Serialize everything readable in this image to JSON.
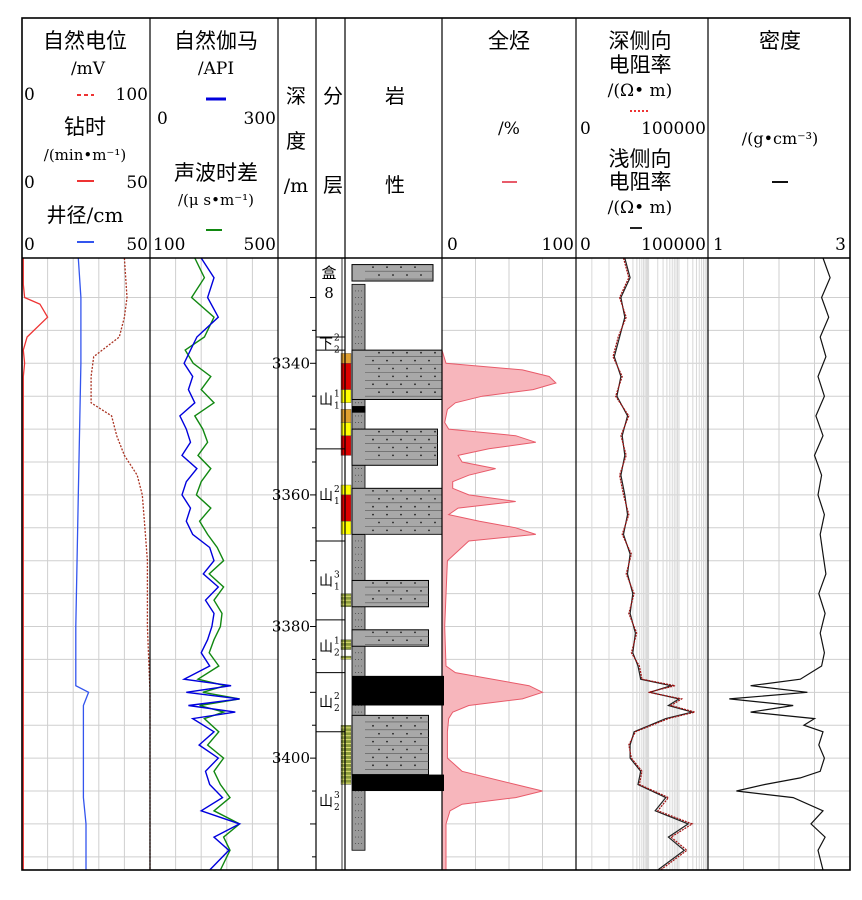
{
  "chart_data": {
    "type": "well_log",
    "depth_range": [
      3324,
      3417
    ],
    "depth_ticks": [
      3340,
      3360,
      3380,
      3400
    ],
    "colors": {
      "sp": "#ee3333",
      "cal": "#3355ee",
      "rop": "#aa3322",
      "gr": "#0000dd",
      "ac": "#118811",
      "tg_fill": "#f7b6bc",
      "tg_line": "#e85b6a",
      "rd": "#a11010",
      "rs": "#222222",
      "den": "#111111",
      "sand_fill": "#a8a8a8",
      "coal": "#000000",
      "oil_red": "#dd0000",
      "oil_orange": "#e0a030",
      "yellow": "#ffff00",
      "green_band": "#8a9a3a"
    },
    "headers": {
      "sp": {
        "name": "自然电位",
        "unit": "/mV",
        "min": "0",
        "max": "100"
      },
      "rop": {
        "name": "钻时",
        "unit": "/(min•m⁻¹)",
        "min": "0",
        "max": "50"
      },
      "cal": {
        "name": "井径/cm",
        "min": "0",
        "max": "50"
      },
      "gr": {
        "name": "自然伽马",
        "unit": "/API",
        "min": "0",
        "max": "300"
      },
      "ac": {
        "name": "声波时差",
        "unit": "/(μ s•m⁻¹)",
        "min": "100",
        "max": "500"
      },
      "depth": {
        "c1": "深",
        "c2": "度",
        "c3": "/m"
      },
      "strata": {
        "c1": "分",
        "c2": "层"
      },
      "lith": {
        "c1": "岩",
        "c2": "性"
      },
      "tg": {
        "name": "全烃",
        "unit": "/%",
        "min": "0",
        "max": "100"
      },
      "rd": {
        "name1": "深侧向",
        "name2": "电阻率",
        "unit": "/(Ω• m)",
        "min": "0",
        "max": "100000"
      },
      "rs": {
        "name1": "浅侧向",
        "name2": "电阻率",
        "unit": "/(Ω• m)"
      },
      "den": {
        "name": "密度",
        "unit": "/(g•cm⁻³)",
        "min": "1",
        "max": "3"
      }
    },
    "strata": [
      {
        "name": "盒",
        "sub": "8",
        "top": 3324,
        "bottom": 3336
      },
      {
        "name": "下",
        "sup": "2",
        "sub": "2",
        "top": 3336,
        "bottom": 3338
      },
      {
        "name": "山",
        "sup": "1",
        "sub": "1",
        "top": 3338,
        "bottom": 3353
      },
      {
        "name": "山",
        "sup": "2",
        "sub": "1",
        "top": 3353,
        "bottom": 3367
      },
      {
        "name": "山",
        "sup": "3",
        "sub": "1",
        "top": 3367,
        "bottom": 3379
      },
      {
        "name": "山",
        "sup": "1",
        "sub": "2",
        "top": 3379,
        "bottom": 3387
      },
      {
        "name": "山",
        "sup": "2",
        "sub": "2",
        "top": 3387,
        "bottom": 3396
      },
      {
        "name": "山",
        "sup": "3",
        "sub": "2",
        "top": 3396,
        "bottom": 3417
      }
    ],
    "lithology": [
      {
        "top": 3325,
        "bottom": 3327.5,
        "type": "sandstone",
        "width": 0.9
      },
      {
        "top": 3338,
        "bottom": 3345.5,
        "type": "sandstone",
        "width": 1.0
      },
      {
        "top": 3346.5,
        "bottom": 3347.5,
        "type": "coal",
        "width": 0.15
      },
      {
        "top": 3350,
        "bottom": 3355.5,
        "type": "sandstone",
        "width": 0.95
      },
      {
        "top": 3359,
        "bottom": 3366,
        "type": "sandstone",
        "width": 1.0
      },
      {
        "top": 3373,
        "bottom": 3377,
        "type": "sandstone",
        "width": 0.85
      },
      {
        "top": 3380.5,
        "bottom": 3383,
        "type": "sandstone",
        "width": 0.85
      },
      {
        "top": 3387.5,
        "bottom": 3392,
        "type": "coal",
        "width": 1.1
      },
      {
        "top": 3393.5,
        "bottom": 3402.5,
        "type": "sandstone",
        "width": 0.85
      },
      {
        "top": 3402.5,
        "bottom": 3405,
        "type": "coal",
        "width": 1.1
      }
    ],
    "oil_shows": [
      {
        "top": 3338.5,
        "bottom": 3340,
        "color": "orange"
      },
      {
        "top": 3340,
        "bottom": 3344,
        "color": "red"
      },
      {
        "top": 3344,
        "bottom": 3346,
        "color": "yellow"
      },
      {
        "top": 3347,
        "bottom": 3349,
        "color": "orange"
      },
      {
        "top": 3349,
        "bottom": 3351,
        "color": "yellow"
      },
      {
        "top": 3351,
        "bottom": 3354,
        "color": "red"
      },
      {
        "top": 3358.5,
        "bottom": 3360,
        "color": "yellow"
      },
      {
        "top": 3360,
        "bottom": 3364,
        "color": "red"
      },
      {
        "top": 3364,
        "bottom": 3366,
        "color": "yellow"
      },
      {
        "top": 3375,
        "bottom": 3377,
        "color": "green"
      },
      {
        "top": 3382,
        "bottom": 3383.5,
        "color": "green"
      },
      {
        "top": 3384.5,
        "bottom": 3385,
        "color": "green"
      },
      {
        "top": 3395,
        "bottom": 3404,
        "color": "green"
      }
    ],
    "series": {
      "sp": {
        "depth": [
          3324,
          3328,
          3330,
          3331,
          3333,
          3336,
          3338,
          3340,
          3342,
          3346,
          3350,
          3360,
          3380,
          3400,
          3417
        ],
        "values": [
          1,
          1,
          2,
          14,
          20,
          4,
          1,
          2,
          1,
          1,
          1,
          1,
          1,
          1,
          1
        ]
      },
      "cal": {
        "depth": [
          3324,
          3330,
          3340,
          3360,
          3380,
          3389,
          3390,
          3392,
          3395,
          3400,
          3406,
          3410,
          3417
        ],
        "values": [
          22,
          23,
          23,
          22,
          21,
          21,
          26,
          24,
          24,
          24,
          24,
          25,
          25
        ]
      },
      "rop": {
        "depth": [
          3324,
          3330,
          3333,
          3336,
          3339,
          3342,
          3346,
          3348,
          3351,
          3354,
          3357,
          3360,
          3365,
          3370,
          3380,
          3390,
          3400,
          3417
        ],
        "values": [
          40,
          41,
          40,
          38,
          28,
          27,
          27,
          35,
          37,
          40,
          45,
          47,
          48,
          49,
          49,
          50,
          50,
          50
        ]
      },
      "gr": {
        "depth": [
          3324,
          3327,
          3330,
          3333,
          3336,
          3338,
          3340,
          3342,
          3344,
          3346,
          3348,
          3350,
          3352,
          3354,
          3356,
          3358,
          3360,
          3362,
          3364,
          3366,
          3368,
          3370,
          3372,
          3374,
          3376,
          3378,
          3380,
          3382,
          3384,
          3386,
          3388,
          3389,
          3390,
          3391,
          3392,
          3393,
          3394,
          3396,
          3398,
          3400,
          3402,
          3404,
          3406,
          3408,
          3410,
          3412,
          3414,
          3417
        ],
        "values": [
          120,
          150,
          135,
          160,
          110,
          95,
          80,
          100,
          90,
          105,
          70,
          85,
          95,
          75,
          110,
          85,
          75,
          95,
          85,
          100,
          140,
          150,
          125,
          160,
          130,
          150,
          145,
          135,
          120,
          140,
          80,
          190,
          85,
          210,
          90,
          200,
          100,
          150,
          115,
          160,
          130,
          140,
          170,
          120,
          210,
          150,
          185,
          140
        ]
      },
      "ac": {
        "depth": [
          3324,
          3327,
          3330,
          3333,
          3336,
          3338,
          3340,
          3342,
          3344,
          3346,
          3348,
          3350,
          3352,
          3354,
          3356,
          3358,
          3360,
          3362,
          3364,
          3366,
          3368,
          3370,
          3372,
          3374,
          3376,
          3378,
          3380,
          3382,
          3384,
          3386,
          3388,
          3389,
          3390,
          3391,
          3392,
          3393,
          3394,
          3396,
          3398,
          3400,
          3402,
          3404,
          3406,
          3408,
          3410,
          3412,
          3414,
          3417
        ],
        "values": [
          240,
          270,
          230,
          300,
          270,
          210,
          235,
          290,
          260,
          300,
          240,
          265,
          280,
          250,
          290,
          260,
          245,
          290,
          255,
          280,
          310,
          330,
          285,
          330,
          300,
          325,
          320,
          300,
          285,
          315,
          250,
          335,
          265,
          380,
          255,
          330,
          270,
          315,
          280,
          330,
          300,
          320,
          350,
          300,
          380,
          330,
          350,
          320
        ]
      },
      "tg": {
        "depth": [
          3324,
          3336,
          3338,
          3340,
          3341,
          3342,
          3343,
          3344,
          3345,
          3346,
          3347,
          3349,
          3350,
          3351,
          3352,
          3353,
          3354,
          3355,
          3356,
          3357,
          3358,
          3359,
          3360,
          3361,
          3362,
          3363,
          3364,
          3365,
          3366,
          3367,
          3370,
          3380,
          3386,
          3387,
          3389,
          3390,
          3391,
          3392,
          3393,
          3394,
          3396,
          3400,
          3402,
          3404,
          3405,
          3406,
          3407,
          3408,
          3410,
          3417
        ],
        "values": [
          0,
          0,
          0,
          3,
          60,
          80,
          85,
          68,
          30,
          10,
          4,
          2,
          5,
          55,
          70,
          35,
          12,
          15,
          40,
          20,
          8,
          8,
          20,
          55,
          12,
          5,
          28,
          55,
          70,
          20,
          4,
          2,
          3,
          10,
          65,
          75,
          60,
          20,
          8,
          5,
          4,
          4,
          15,
          55,
          75,
          55,
          15,
          6,
          3,
          3
        ]
      },
      "rd": {
        "depth": [
          3324,
          3327,
          3330,
          3333,
          3336,
          3339,
          3342,
          3345,
          3348,
          3351,
          3354,
          3357,
          3360,
          3363,
          3366,
          3369,
          3372,
          3375,
          3378,
          3381,
          3384,
          3386,
          3388,
          3389,
          3390,
          3391,
          3392,
          3393,
          3394,
          3396,
          3398,
          3400,
          3402,
          3404,
          3406,
          3408,
          3410,
          3412,
          3414,
          3417
        ],
        "values": [
          36000,
          40000,
          33000,
          38000,
          32000,
          28000,
          35000,
          30000,
          40000,
          34000,
          38000,
          33000,
          36000,
          40000,
          35000,
          42000,
          38000,
          44000,
          40000,
          46000,
          42000,
          48000,
          50000,
          75000,
          55000,
          80000,
          72000,
          90000,
          70000,
          45000,
          40000,
          42000,
          50000,
          48000,
          70000,
          62000,
          88000,
          72000,
          84000,
          64000
        ]
      },
      "rs": {
        "depth": [
          3324,
          3327,
          3330,
          3333,
          3336,
          3339,
          3342,
          3345,
          3348,
          3351,
          3354,
          3357,
          3360,
          3363,
          3366,
          3369,
          3372,
          3375,
          3378,
          3381,
          3384,
          3386,
          3388,
          3389,
          3390,
          3391,
          3392,
          3393,
          3394,
          3396,
          3398,
          3400,
          3402,
          3404,
          3406,
          3408,
          3410,
          3412,
          3414,
          3417
        ],
        "values": [
          37000,
          41000,
          34000,
          37000,
          33000,
          29000,
          34000,
          31000,
          39000,
          35000,
          37000,
          34000,
          37000,
          39000,
          36000,
          41000,
          39000,
          43000,
          41000,
          45000,
          43000,
          47000,
          49000,
          72000,
          56000,
          78000,
          70000,
          88000,
          68000,
          44000,
          41000,
          41000,
          49000,
          47000,
          68000,
          60000,
          85000,
          70000,
          82000,
          62000
        ]
      },
      "den": {
        "depth": [
          3324,
          3327,
          3330,
          3333,
          3336,
          3339,
          3342,
          3345,
          3348,
          3351,
          3354,
          3357,
          3360,
          3363,
          3366,
          3369,
          3372,
          3375,
          3378,
          3381,
          3384,
          3386,
          3388,
          3389,
          3390,
          3391,
          3392,
          3393,
          3394,
          3395,
          3396,
          3398,
          3400,
          3402,
          3403,
          3404,
          3405,
          3406,
          3408,
          3410,
          3412,
          3414,
          3417
        ],
        "values": [
          2.62,
          2.72,
          2.6,
          2.7,
          2.58,
          2.66,
          2.55,
          2.64,
          2.52,
          2.62,
          2.5,
          2.6,
          2.55,
          2.64,
          2.58,
          2.62,
          2.66,
          2.56,
          2.65,
          2.58,
          2.64,
          2.6,
          2.3,
          1.6,
          2.4,
          1.3,
          2.2,
          1.6,
          2.5,
          2.35,
          2.62,
          2.56,
          2.64,
          2.58,
          2.3,
          1.8,
          1.4,
          2.2,
          2.62,
          2.45,
          2.65,
          2.55,
          2.62
        ]
      }
    }
  }
}
